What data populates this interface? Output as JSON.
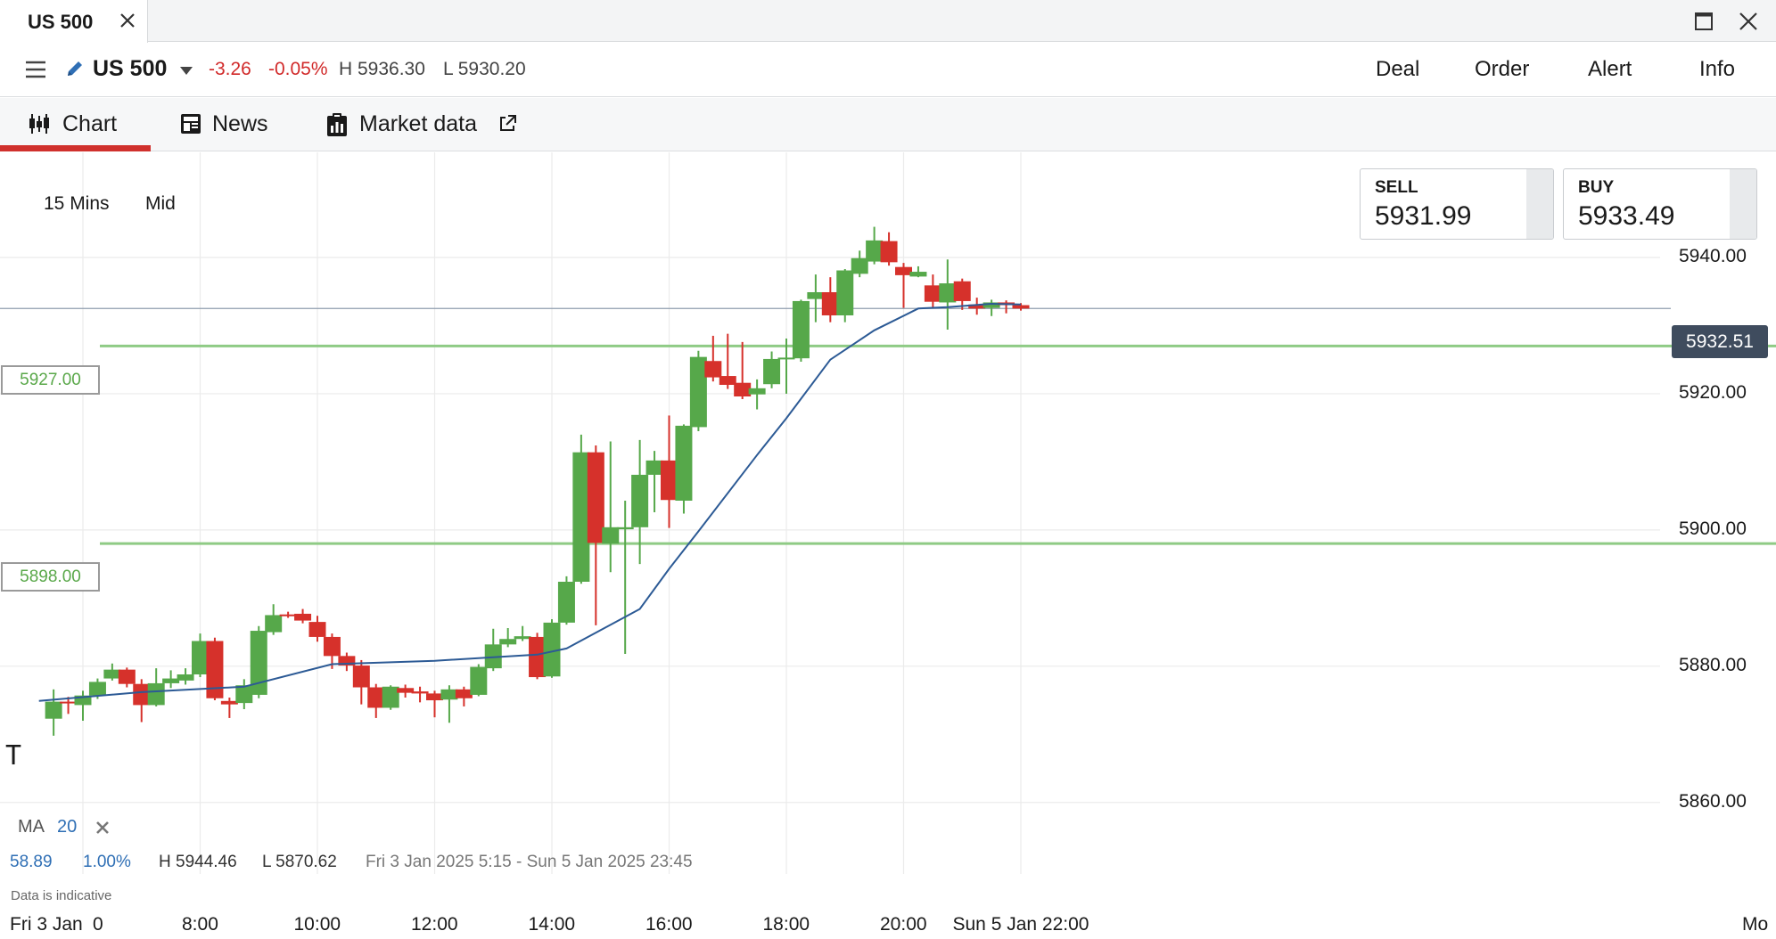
{
  "window": {
    "tab_title": "US 500",
    "close_icon": "close-icon",
    "maximize_icon": "maximize-icon"
  },
  "instrument": {
    "name": "US 500",
    "change_points": "-3.26",
    "change_percent": "-0.05%",
    "high": "H 5936.30",
    "low": "L 5930.20",
    "actions": [
      "Deal",
      "Order",
      "Alert",
      "Info"
    ]
  },
  "subtabs": [
    {
      "label": "Chart",
      "icon": "candlestick-icon",
      "active": true
    },
    {
      "label": "News",
      "icon": "news-icon",
      "active": false
    },
    {
      "label": "Market data",
      "icon": "clipboard-icon",
      "active": false
    }
  ],
  "chart_controls": {
    "interval": "15 Mins",
    "price_type": "Mid"
  },
  "quotes": {
    "sell_label": "SELL",
    "sell_value": "5931.99",
    "buy_label": "BUY",
    "buy_value": "5933.49"
  },
  "levels": {
    "upper": "5927.00",
    "lower": "5898.00"
  },
  "last_price": "5932.51",
  "indicator": {
    "name": "MA",
    "period": "20"
  },
  "stats": {
    "change": "58.89",
    "change_percent": "1.00%",
    "high": "H 5944.46",
    "low": "L 5870.62",
    "range": "Fri 3 Jan 2025 5:15 - Sun 5 Jan 2025 23:45"
  },
  "disclaimer": "Data is indicative",
  "colors": {
    "up": "#56a84a",
    "down": "#d6312b",
    "ma": "#2c5a95",
    "level": "#8fcb85",
    "accent": "#d0312d"
  },
  "chart_data": {
    "type": "candlestick",
    "ylim": [
      5851.73,
      5955.43
    ],
    "y_ticks": [
      5940,
      5920,
      5900,
      5880,
      5860
    ],
    "y_tick_labels": [
      "5940.00",
      "5920.00",
      "5900.00",
      "5880.00",
      "5860.00"
    ],
    "x_tick_labels": [
      "Fri 3 Jan",
      "0",
      "8:00",
      "10:00",
      "12:00",
      "14:00",
      "16:00",
      "18:00",
      "20:00",
      "Sun 5 Jan 22:00",
      "Mo"
    ],
    "x_ticks": [
      "6:00",
      "8:00",
      "10:00",
      "12:00",
      "14:00",
      "16:00",
      "18:00",
      "20:00",
      "22:00"
    ],
    "horizontal_levels": [
      5927.0,
      5898.0
    ],
    "last_price": 5932.51,
    "candles": [
      {
        "t": "5:30",
        "o": 5872.3,
        "h": 5876.6,
        "l": 5869.8,
        "c": 5874.8
      },
      {
        "t": "5:45",
        "o": 5874.8,
        "h": 5875.5,
        "l": 5873.0,
        "c": 5874.6
      },
      {
        "t": "6:00",
        "o": 5874.3,
        "h": 5876.4,
        "l": 5872.0,
        "c": 5875.7
      },
      {
        "t": "6:15",
        "o": 5875.7,
        "h": 5878.2,
        "l": 5875.2,
        "c": 5877.7
      },
      {
        "t": "6:30",
        "o": 5878.2,
        "h": 5880.4,
        "l": 5877.9,
        "c": 5879.5
      },
      {
        "t": "6:45",
        "o": 5879.5,
        "h": 5879.8,
        "l": 5876.9,
        "c": 5877.4
      },
      {
        "t": "7:00",
        "o": 5877.4,
        "h": 5878.1,
        "l": 5871.8,
        "c": 5874.3
      },
      {
        "t": "7:15",
        "o": 5874.3,
        "h": 5879.7,
        "l": 5874.1,
        "c": 5877.5
      },
      {
        "t": "7:30",
        "o": 5877.5,
        "h": 5879.4,
        "l": 5876.8,
        "c": 5878.2
      },
      {
        "t": "7:45",
        "o": 5877.9,
        "h": 5879.7,
        "l": 5877.3,
        "c": 5878.8
      },
      {
        "t": "8:00",
        "o": 5878.8,
        "h": 5884.8,
        "l": 5878.4,
        "c": 5883.7
      },
      {
        "t": "8:15",
        "o": 5883.7,
        "h": 5884.2,
        "l": 5875.0,
        "c": 5875.3
      },
      {
        "t": "8:30",
        "o": 5874.9,
        "h": 5875.4,
        "l": 5872.4,
        "c": 5874.4
      },
      {
        "t": "8:45",
        "o": 5874.6,
        "h": 5878.1,
        "l": 5873.7,
        "c": 5877.2
      },
      {
        "t": "9:00",
        "o": 5875.8,
        "h": 5885.9,
        "l": 5875.3,
        "c": 5885.2
      },
      {
        "t": "9:15",
        "o": 5885.0,
        "h": 5889.1,
        "l": 5884.6,
        "c": 5887.5
      },
      {
        "t": "9:30",
        "o": 5887.6,
        "h": 5888.0,
        "l": 5887.1,
        "c": 5887.4
      },
      {
        "t": "9:45",
        "o": 5887.7,
        "h": 5888.4,
        "l": 5886.3,
        "c": 5886.7
      },
      {
        "t": "10:00",
        "o": 5886.5,
        "h": 5887.4,
        "l": 5883.6,
        "c": 5884.3
      },
      {
        "t": "10:15",
        "o": 5884.3,
        "h": 5884.8,
        "l": 5879.6,
        "c": 5881.5
      },
      {
        "t": "10:30",
        "o": 5881.5,
        "h": 5882.0,
        "l": 5879.3,
        "c": 5880.1
      },
      {
        "t": "10:45",
        "o": 5880.1,
        "h": 5880.9,
        "l": 5874.4,
        "c": 5876.9
      },
      {
        "t": "11:00",
        "o": 5876.9,
        "h": 5877.4,
        "l": 5872.4,
        "c": 5873.9
      },
      {
        "t": "11:15",
        "o": 5873.9,
        "h": 5877.2,
        "l": 5873.6,
        "c": 5877.0
      },
      {
        "t": "11:30",
        "o": 5876.8,
        "h": 5877.3,
        "l": 5875.4,
        "c": 5876.1
      },
      {
        "t": "11:45",
        "o": 5876.3,
        "h": 5877.0,
        "l": 5874.7,
        "c": 5876.0
      },
      {
        "t": "12:00",
        "o": 5876.0,
        "h": 5876.4,
        "l": 5872.5,
        "c": 5875.0
      },
      {
        "t": "12:15",
        "o": 5875.1,
        "h": 5877.2,
        "l": 5871.7,
        "c": 5876.6
      },
      {
        "t": "12:30",
        "o": 5876.6,
        "h": 5877.0,
        "l": 5874.1,
        "c": 5875.3
      },
      {
        "t": "12:45",
        "o": 5875.8,
        "h": 5880.3,
        "l": 5875.6,
        "c": 5879.9
      },
      {
        "t": "13:00",
        "o": 5879.7,
        "h": 5885.5,
        "l": 5879.3,
        "c": 5883.2
      },
      {
        "t": "13:15",
        "o": 5883.2,
        "h": 5885.6,
        "l": 5882.8,
        "c": 5884.0
      },
      {
        "t": "13:30",
        "o": 5884.0,
        "h": 5885.9,
        "l": 5883.7,
        "c": 5884.4
      },
      {
        "t": "13:45",
        "o": 5884.3,
        "h": 5884.9,
        "l": 5878.1,
        "c": 5878.4
      },
      {
        "t": "14:00",
        "o": 5878.5,
        "h": 5886.9,
        "l": 5878.3,
        "c": 5886.4
      },
      {
        "t": "14:15",
        "o": 5886.4,
        "h": 5893.2,
        "l": 5886.1,
        "c": 5892.4
      },
      {
        "t": "14:30",
        "o": 5892.4,
        "h": 5914.0,
        "l": 5892.1,
        "c": 5911.4
      },
      {
        "t": "14:45",
        "o": 5911.4,
        "h": 5912.4,
        "l": 5886.0,
        "c": 5898.1
      },
      {
        "t": "15:00",
        "o": 5898.0,
        "h": 5913.0,
        "l": 5893.8,
        "c": 5900.4
      },
      {
        "t": "15:15",
        "o": 5900.1,
        "h": 5904.3,
        "l": 5881.8,
        "c": 5900.4
      },
      {
        "t": "15:30",
        "o": 5900.4,
        "h": 5913.2,
        "l": 5895.0,
        "c": 5908.1
      },
      {
        "t": "15:45",
        "o": 5908.1,
        "h": 5911.6,
        "l": 5902.6,
        "c": 5910.2
      },
      {
        "t": "16:00",
        "o": 5910.2,
        "h": 5916.8,
        "l": 5900.3,
        "c": 5904.4
      },
      {
        "t": "16:15",
        "o": 5904.3,
        "h": 5915.5,
        "l": 5902.4,
        "c": 5915.3
      },
      {
        "t": "16:30",
        "o": 5915.1,
        "h": 5926.3,
        "l": 5914.5,
        "c": 5925.4
      },
      {
        "t": "16:45",
        "o": 5924.8,
        "h": 5928.5,
        "l": 5921.8,
        "c": 5922.4
      },
      {
        "t": "17:00",
        "o": 5922.6,
        "h": 5928.8,
        "l": 5920.7,
        "c": 5921.3
      },
      {
        "t": "17:15",
        "o": 5921.6,
        "h": 5927.6,
        "l": 5919.2,
        "c": 5919.6
      },
      {
        "t": "17:30",
        "o": 5919.9,
        "h": 5922.1,
        "l": 5917.7,
        "c": 5920.8
      },
      {
        "t": "17:45",
        "o": 5921.4,
        "h": 5926.2,
        "l": 5920.8,
        "c": 5925.1
      },
      {
        "t": "18:00",
        "o": 5925.1,
        "h": 5928.1,
        "l": 5920.0,
        "c": 5925.3
      },
      {
        "t": "18:15",
        "o": 5925.2,
        "h": 5933.8,
        "l": 5924.7,
        "c": 5933.6
      },
      {
        "t": "18:30",
        "o": 5933.9,
        "h": 5937.5,
        "l": 5930.5,
        "c": 5934.9
      },
      {
        "t": "18:45",
        "o": 5934.9,
        "h": 5937.1,
        "l": 5930.5,
        "c": 5931.5
      },
      {
        "t": "19:00",
        "o": 5931.5,
        "h": 5938.3,
        "l": 5930.5,
        "c": 5938.1
      },
      {
        "t": "19:15",
        "o": 5937.6,
        "h": 5941.0,
        "l": 5937.1,
        "c": 5939.9
      },
      {
        "t": "19:30",
        "o": 5939.4,
        "h": 5944.5,
        "l": 5939.0,
        "c": 5942.5
      },
      {
        "t": "19:45",
        "o": 5942.4,
        "h": 5943.7,
        "l": 5938.8,
        "c": 5939.3
      },
      {
        "t": "20:00",
        "o": 5938.6,
        "h": 5939.2,
        "l": 5932.6,
        "c": 5937.4
      },
      {
        "t": "20:15",
        "o": 5937.2,
        "h": 5938.7,
        "l": 5937.1,
        "c": 5937.9
      },
      {
        "t": "20:30",
        "o": 5935.9,
        "h": 5937.5,
        "l": 5932.7,
        "c": 5933.5
      },
      {
        "t": "20:45",
        "o": 5933.4,
        "h": 5939.7,
        "l": 5929.4,
        "c": 5936.2
      },
      {
        "t": "21:00",
        "o": 5936.5,
        "h": 5936.9,
        "l": 5932.3,
        "c": 5933.6
      },
      {
        "t": "21:15",
        "o": 5933.1,
        "h": 5934.1,
        "l": 5931.6,
        "c": 5932.5
      },
      {
        "t": "21:30",
        "o": 5932.6,
        "h": 5933.8,
        "l": 5931.4,
        "c": 5933.4
      },
      {
        "t": "21:45",
        "o": 5933.4,
        "h": 5933.7,
        "l": 5931.8,
        "c": 5933.0
      },
      {
        "t": "22:00",
        "o": 5933.0,
        "h": 5933.3,
        "l": 5932.2,
        "c": 5932.5
      }
    ],
    "ma": {
      "name": "MA 20",
      "t": [
        "5:15",
        "7:00",
        "8:45",
        "10:15",
        "12:00",
        "13:45",
        "14:15",
        "15:30",
        "16:00",
        "16:30",
        "17:30",
        "18:00",
        "18:45",
        "19:30",
        "20:15",
        "20:45",
        "21:30",
        "22:00"
      ],
      "values": [
        5874.9,
        5876.2,
        5877.0,
        5880.3,
        5880.8,
        5881.7,
        5882.6,
        5888.4,
        5894.3,
        5899.8,
        5911.0,
        5916.4,
        5925.0,
        5929.3,
        5932.5,
        5932.7,
        5933.2,
        5933.1
      ]
    }
  }
}
